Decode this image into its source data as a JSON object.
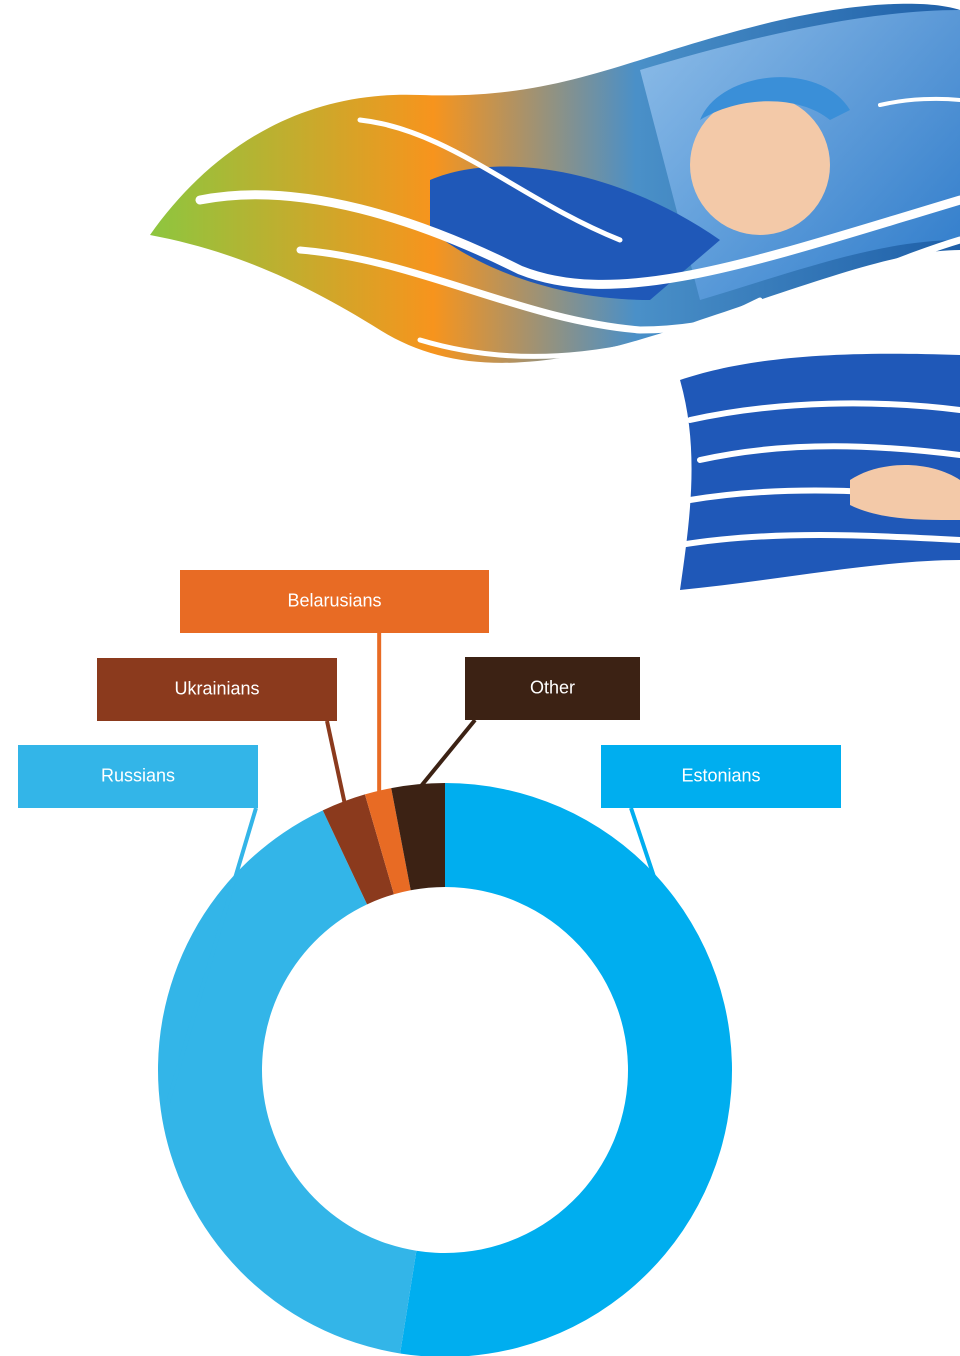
{
  "chart_data": {
    "type": "pie",
    "style": "donut",
    "categories": [
      "Estonians",
      "Russians",
      "Ukrainians",
      "Belarusians",
      "Other"
    ],
    "values": [
      52.5,
      40.5,
      2.5,
      1.5,
      3.0
    ],
    "colors": [
      "#00aeef",
      "#33b5e8",
      "#8b3a1d",
      "#e86b24",
      "#3c2214"
    ],
    "title": "",
    "legend": "callout-boxes"
  }
}
